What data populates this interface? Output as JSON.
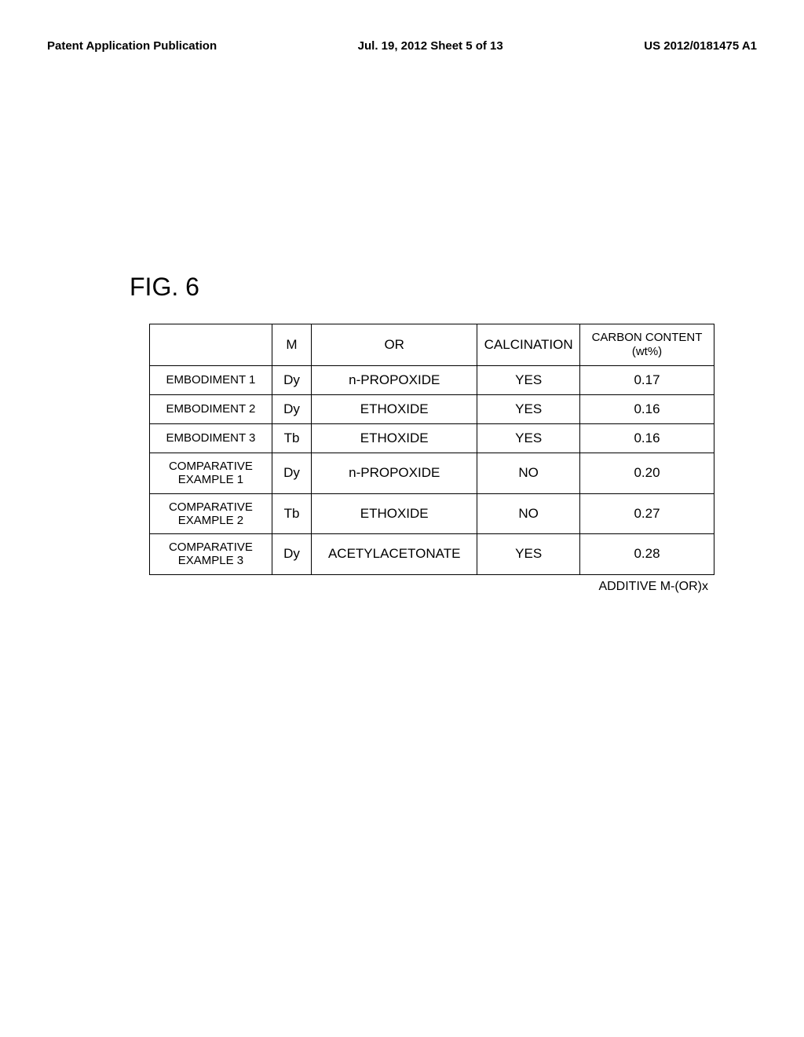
{
  "header": {
    "left": "Patent Application Publication",
    "center": "Jul. 19, 2012  Sheet 5 of 13",
    "right": "US 2012/0181475 A1"
  },
  "figure_label": "FIG. 6",
  "table": {
    "columns": {
      "label": "",
      "m": "M",
      "or": "OR",
      "calcination": "CALCINATION",
      "carbon_line1": "CARBON CONTENT",
      "carbon_line2": "(wt%)"
    },
    "rows": [
      {
        "label": "EMBODIMENT 1",
        "m": "Dy",
        "or": "n-PROPOXIDE",
        "calcination": "YES",
        "carbon": "0.17",
        "two_line": false
      },
      {
        "label": "EMBODIMENT 2",
        "m": "Dy",
        "or": "ETHOXIDE",
        "calcination": "YES",
        "carbon": "0.16",
        "two_line": false
      },
      {
        "label": "EMBODIMENT 3",
        "m": "Tb",
        "or": "ETHOXIDE",
        "calcination": "YES",
        "carbon": "0.16",
        "two_line": false
      },
      {
        "label_line1": "COMPARATIVE",
        "label_line2": "EXAMPLE 1",
        "m": "Dy",
        "or": "n-PROPOXIDE",
        "calcination": "NO",
        "carbon": "0.20",
        "two_line": true
      },
      {
        "label_line1": "COMPARATIVE",
        "label_line2": "EXAMPLE 2",
        "m": "Tb",
        "or": "ETHOXIDE",
        "calcination": "NO",
        "carbon": "0.27",
        "two_line": true
      },
      {
        "label_line1": "COMPARATIVE",
        "label_line2": "EXAMPLE 3",
        "m": "Dy",
        "or": "ACETYLACETONATE",
        "calcination": "YES",
        "carbon": "0.28",
        "two_line": true
      }
    ]
  },
  "footnote": "ADDITIVE M-(OR)x"
}
